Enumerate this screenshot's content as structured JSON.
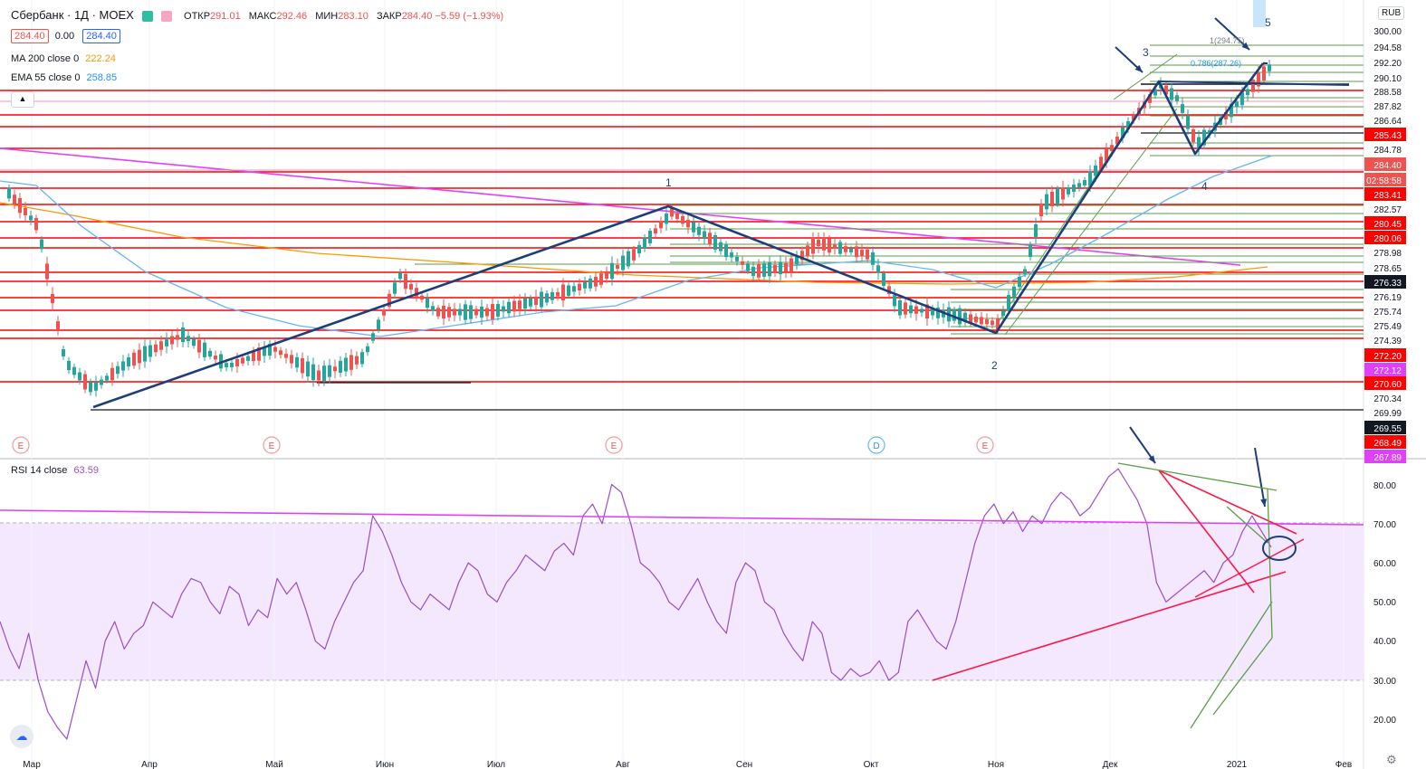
{
  "header": {
    "symbol": "Сбербанк · 1Д · MOEX",
    "ohlc": [
      {
        "label": "ОТКР",
        "value": "291.01"
      },
      {
        "label": "МАКС",
        "value": "292.46"
      },
      {
        "label": "МИН",
        "value": "283.10"
      },
      {
        "label": "ЗАКР",
        "value": "284.40 −5.59 (−1.93%)"
      }
    ],
    "bid": "284.40",
    "spread": "0.00",
    "ask": "284.40",
    "ma_label": "MA 200 close 0",
    "ma_value": "222.24",
    "ema_label": "EMA 55 close 0",
    "ema_value": "258.85",
    "currency": "RUB"
  },
  "colors": {
    "up": "#26a69a",
    "down": "#ef5350",
    "ma200": "#ff9800",
    "ema55": "#64b5f6",
    "red_line": "#ff0000",
    "magenta_line": "#e040fb",
    "wave": "#1c3f7a",
    "fib_green": "#5b9e48",
    "rsi": "#9c4dcc",
    "rsi_band": "#f3e8fd"
  },
  "price_axis": {
    "labels": [
      "300.00",
      "294.58",
      "292.20",
      "290.10",
      "288.58",
      "287.82",
      "286.64",
      "285.43",
      "284.78",
      "284.40",
      "02:58:58",
      "283.41",
      "282.57",
      "280.45",
      "280.06",
      "278.98",
      "278.65",
      "276.33",
      "276.19",
      "275.74",
      "275.49",
      "274.39",
      "272.20",
      "272.12",
      "270.60",
      "270.34",
      "269.99",
      "269.55",
      "268.49",
      "267.89"
    ]
  },
  "rsi": {
    "label": "RSI 14 close",
    "value": "63.59",
    "axis": [
      "80.00",
      "70.00",
      "60.00",
      "50.00",
      "40.00",
      "30.00",
      "20.00"
    ]
  },
  "time_axis": [
    "Мар",
    "Апр",
    "Май",
    "Июн",
    "Июл",
    "Авг",
    "Сен",
    "Окт",
    "Ноя",
    "Дек",
    "2021",
    "Фев"
  ],
  "wave_labels": [
    "1",
    "2",
    "3",
    "4",
    "5"
  ],
  "fib_labels": [
    "1(294.75)",
    "0.786(287.26)"
  ],
  "event_markers": [
    "E",
    "E",
    "E",
    "D",
    "E"
  ]
}
